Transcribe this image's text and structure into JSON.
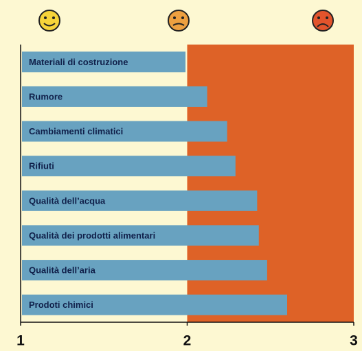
{
  "chart_data": {
    "type": "bar",
    "orientation": "horizontal",
    "categories": [
      "Materiali di costruzione",
      "Rumore",
      "Cambiamenti climatici",
      "Rifiuti",
      "Qualità dell’acqua",
      "Qualità dei prodotti alimentari",
      "Qualità dell’aria",
      "Prodoti chimici"
    ],
    "values": [
      1.99,
      2.12,
      2.24,
      2.29,
      2.42,
      2.43,
      2.48,
      2.6
    ],
    "color": "#68a2c0",
    "xlim": [
      1,
      3
    ],
    "xticks": [
      1,
      2,
      3
    ]
  }
}
